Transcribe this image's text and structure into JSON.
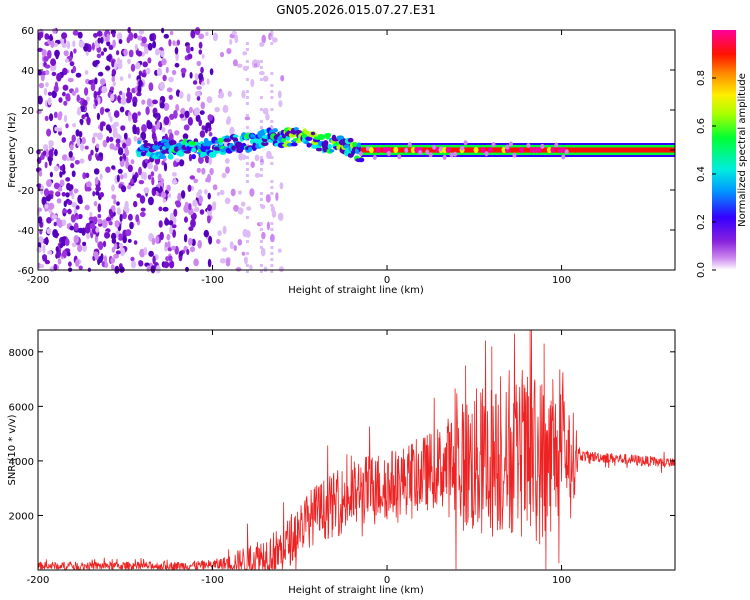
{
  "title": "GN05.2026.015.07.27.E31",
  "chart_data": [
    {
      "type": "heatmap",
      "name": "spectrogram",
      "xlabel": "Height of straight line (km)",
      "ylabel": "Frequency (Hz)",
      "xlim": [
        -200,
        165
      ],
      "ylim": [
        -60,
        60
      ],
      "xticks": [
        -200,
        -100,
        0,
        100
      ],
      "yticks": [
        60,
        40,
        20,
        0,
        -20,
        -40,
        -60
      ],
      "xtick_labels": [
        "-200",
        "-100",
        "0",
        "100"
      ],
      "ytick_labels": [
        "60",
        "40",
        "20",
        "0",
        "-20",
        "-40",
        "-60"
      ],
      "colorbar": {
        "label": "Normalized spectral amplitude",
        "range": [
          0,
          1
        ],
        "ticks": [
          0.0,
          0.2,
          0.4,
          0.6,
          0.8
        ],
        "tick_labels": [
          "0.0",
          "0.2",
          "0.4",
          "0.6",
          "0.8"
        ]
      },
      "features": {
        "noise_region_km": [
          -200,
          -60
        ],
        "trace_frequency_hz": [
          [
            -140,
            1
          ],
          [
            -120,
            0
          ],
          [
            -100,
            1
          ],
          [
            -90,
            3
          ],
          [
            -80,
            4
          ],
          [
            -70,
            6
          ],
          [
            -60,
            6
          ],
          [
            -50,
            7
          ],
          [
            -40,
            4
          ],
          [
            -30,
            3
          ],
          [
            -20,
            1
          ],
          [
            -15,
            -2
          ],
          [
            -10,
            0
          ],
          [
            0,
            0
          ],
          [
            50,
            0
          ],
          [
            100,
            0
          ],
          [
            165,
            0
          ]
        ],
        "steady_band_km": [
          -15,
          165
        ]
      },
      "palette": [
        "#ffffff",
        "#cc88ee",
        "#7711cc",
        "#3300ff",
        "#00ccff",
        "#00ff44",
        "#ffee00",
        "#ff1100",
        "#ff0099"
      ]
    },
    {
      "type": "line",
      "name": "snr",
      "xlabel": "Height of straight line (km)",
      "ylabel": "SNR (10 * v/v)",
      "xlim": [
        -200,
        165
      ],
      "ylim": [
        0,
        8800
      ],
      "xticks": [
        -200,
        -100,
        0,
        100
      ],
      "yticks": [
        2000,
        4000,
        6000,
        8000
      ],
      "xtick_labels": [
        "-200",
        "-100",
        "0",
        "100"
      ],
      "ytick_labels": [
        "2000",
        "4000",
        "6000",
        "8000"
      ],
      "color": "#ee2222",
      "envelope": {
        "x": [
          -200,
          -120,
          -100,
          -90,
          -80,
          -60,
          -50,
          -40,
          -30,
          -20,
          -10,
          0,
          10,
          20,
          30,
          40,
          50,
          60,
          70,
          80,
          90,
          100,
          108,
          110,
          130,
          165
        ],
        "base": [
          150,
          150,
          180,
          250,
          380,
          700,
          1600,
          2100,
          2400,
          2700,
          3000,
          3100,
          3300,
          3500,
          3800,
          3800,
          3900,
          4000,
          4000,
          4100,
          4000,
          4300,
          4200,
          4200,
          4100,
          3900
        ],
        "amp": [
          150,
          160,
          200,
          300,
          600,
          900,
          1000,
          1100,
          1200,
          1300,
          1300,
          1300,
          1300,
          1400,
          1500,
          2200,
          2800,
          2900,
          2700,
          3000,
          3200,
          2200,
          1500,
          200,
          200,
          200
        ]
      },
      "peaks": [
        {
          "x": 82,
          "y": 8800
        },
        {
          "x": 90,
          "y": 8300
        },
        {
          "x": 60,
          "y": 8200
        },
        {
          "x": 45,
          "y": 7500
        },
        {
          "x": 65,
          "y": 7100
        },
        {
          "x": 95,
          "y": 7000
        },
        {
          "x": -80,
          "y": 1700
        }
      ]
    }
  ]
}
